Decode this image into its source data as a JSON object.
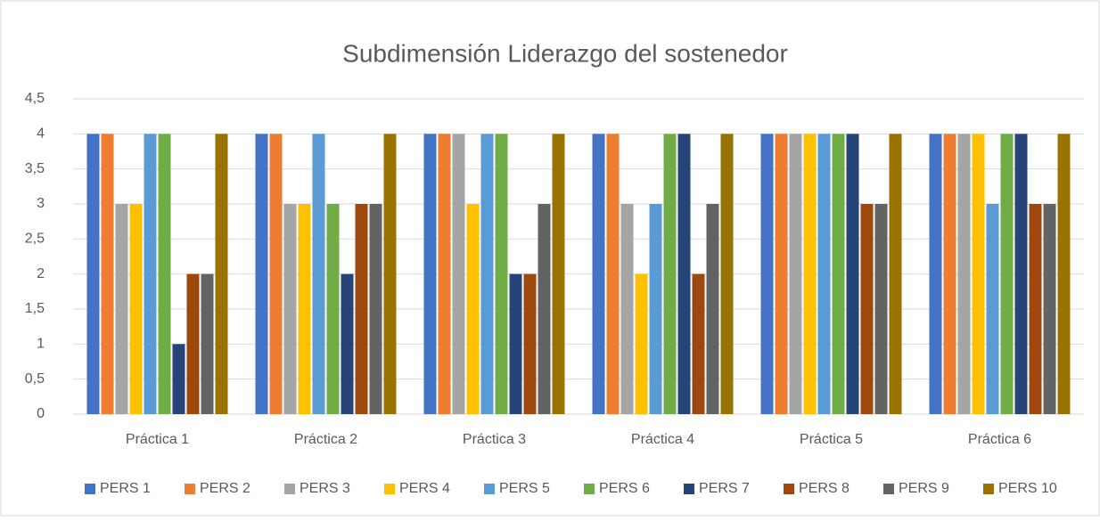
{
  "chart_data": {
    "type": "bar",
    "title": "Subdimensión Liderazgo del sostenedor",
    "categories": [
      "Práctica 1",
      "Práctica 2",
      "Práctica 3",
      "Práctica 4",
      "Práctica 5",
      "Práctica 6"
    ],
    "series": [
      {
        "name": "PERS 1",
        "color": "#4472c4",
        "values": [
          4,
          4,
          4,
          4,
          4,
          4
        ]
      },
      {
        "name": "PERS 2",
        "color": "#ed7d31",
        "values": [
          4,
          4,
          4,
          4,
          4,
          4
        ]
      },
      {
        "name": "PERS 3",
        "color": "#a5a5a5",
        "values": [
          3,
          3,
          4,
          3,
          4,
          4
        ]
      },
      {
        "name": "PERS 4",
        "color": "#ffc000",
        "values": [
          3,
          3,
          3,
          2,
          4,
          4
        ]
      },
      {
        "name": "PERS 5",
        "color": "#5b9bd5",
        "values": [
          4,
          4,
          4,
          3,
          4,
          3
        ]
      },
      {
        "name": "PERS 6",
        "color": "#70ad47",
        "values": [
          4,
          3,
          4,
          4,
          4,
          4
        ]
      },
      {
        "name": "PERS 7",
        "color": "#264478",
        "values": [
          1,
          2,
          2,
          4,
          4,
          4
        ]
      },
      {
        "name": "PERS 8",
        "color": "#9e480e",
        "values": [
          2,
          3,
          2,
          2,
          3,
          3
        ]
      },
      {
        "name": "PERS 9",
        "color": "#636363",
        "values": [
          2,
          3,
          3,
          3,
          3,
          3
        ]
      },
      {
        "name": "PERS 10",
        "color": "#997300",
        "values": [
          4,
          4,
          4,
          4,
          4,
          4
        ]
      }
    ],
    "ylim": [
      0,
      4.5
    ],
    "yticks": [
      0,
      {
        "value": 0.5,
        "label": "0,5"
      },
      1,
      {
        "value": 1.5,
        "label": "1,5"
      },
      2,
      {
        "value": 2.5,
        "label": "2,5"
      },
      3,
      {
        "value": 3.5,
        "label": "3,5"
      },
      4,
      {
        "value": 4.5,
        "label": "4,5"
      }
    ],
    "grid": true,
    "legend": "bottom"
  }
}
